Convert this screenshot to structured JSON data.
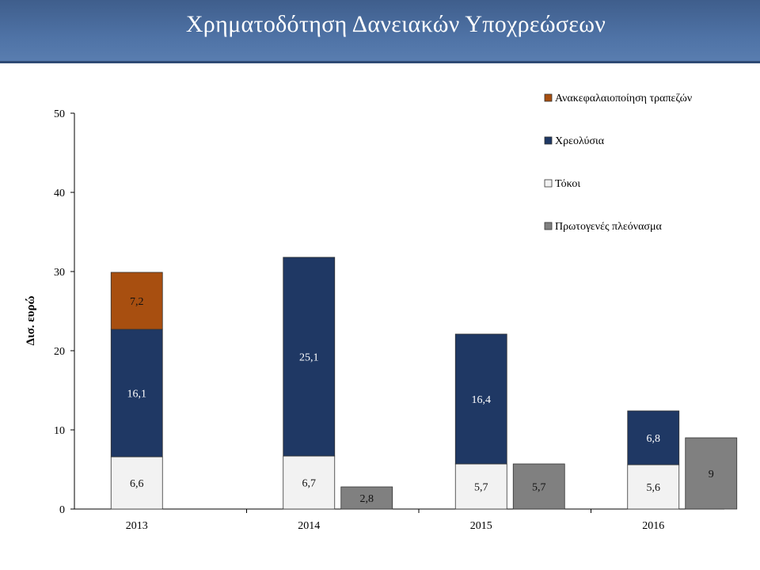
{
  "header": {
    "title": "Χρηματοδότηση Δανειακών Υποχρεώσεων"
  },
  "chart_data": {
    "type": "bar",
    "title": "Χρηματοδότηση Δανειακών Υποχρεώσεων",
    "ylabel": "Δισ. ευρώ",
    "xlabel": "",
    "ylim": [
      0,
      50
    ],
    "yticks": [
      0,
      10,
      20,
      30,
      40,
      50
    ],
    "categories": [
      "2013",
      "2014",
      "2015",
      "2016"
    ],
    "grid": false,
    "legend_position": "top-right",
    "stacked_series": [
      {
        "name": "Τόκοι",
        "color": "#f2f2f2",
        "label_color": "#111111",
        "values": [
          6.6,
          6.7,
          5.7,
          5.6
        ],
        "labels": [
          "6,6",
          "6,7",
          "5,7",
          "5,6"
        ]
      },
      {
        "name": "Χρεολύσια",
        "color": "#1f3864",
        "label_color": "#ffffff",
        "values": [
          16.1,
          25.1,
          16.4,
          6.8
        ],
        "labels": [
          "16,1",
          "25,1",
          "16,4",
          "6,8"
        ]
      },
      {
        "name": "Ανακεφαλαιοποίηση τραπεζών",
        "color": "#a84f10",
        "label_color": "#111111",
        "values": [
          7.2,
          null,
          null,
          null
        ],
        "labels": [
          "7,2",
          "",
          "",
          ""
        ]
      }
    ],
    "side_series": {
      "name": "Πρωτογενές πλεόνασμα",
      "color": "#808080",
      "label_color": "#111111",
      "values": [
        null,
        2.8,
        5.7,
        9
      ],
      "labels": [
        "",
        "2,8",
        "5,7",
        "9"
      ]
    },
    "legend": [
      {
        "name": "Ανακεφαλαιοποίηση τραπεζών",
        "color": "#a84f10"
      },
      {
        "name": "Χρεολύσια",
        "color": "#1f3864"
      },
      {
        "name": "Τόκοι",
        "color": "#f2f2f2"
      },
      {
        "name": "Πρωτογενές πλεόνασμα",
        "color": "#808080"
      }
    ]
  }
}
